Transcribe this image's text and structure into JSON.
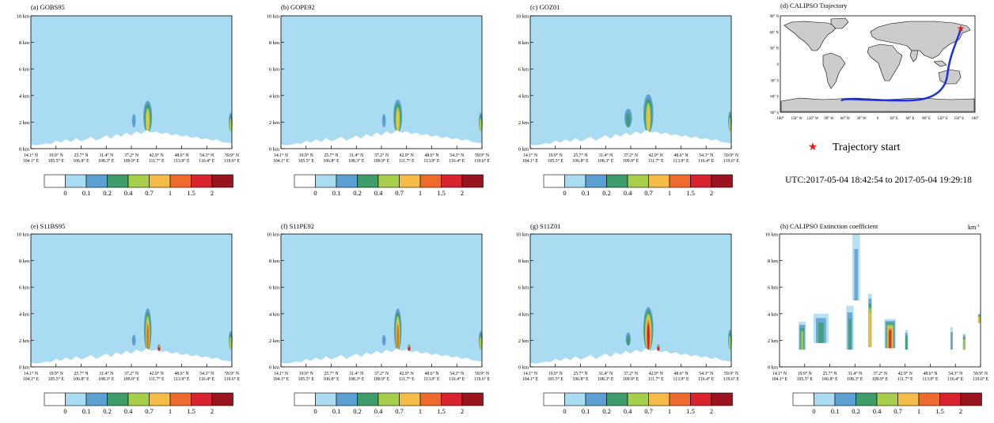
{
  "figure": {
    "colorbar": {
      "levels": [
        "0",
        "0.1",
        "0.2",
        "0.4",
        "0.7",
        "1",
        "1.5",
        "2"
      ],
      "colors": [
        "#ffffff",
        "#a9dcf2",
        "#5b9fd3",
        "#3e9d6b",
        "#a8cf4c",
        "#f5bd48",
        "#ef6a2d",
        "#d8232f",
        "#99141c"
      ]
    },
    "trajectory_panel": {
      "title": "(d) CALIPSO Trajectory",
      "lat_labels": [
        "90° N",
        "60° N",
        "30° N",
        "0",
        "30° S",
        "60° S",
        "90° S"
      ],
      "lon_labels": [
        "180°",
        "150° W",
        "120° W",
        "90° W",
        "60° W",
        "30° W",
        "0",
        "30° E",
        "60° E",
        "90° E",
        "120° E",
        "150° E",
        "180°"
      ],
      "legend_label": "Trajectory start",
      "utc_text": "UTC:2017-05-04 18:42:54 to 2017-05-04 19:29:18",
      "track_color": "#1a2fe0",
      "star_color": "#e41a1c"
    },
    "extinction_unit": "km",
    "extinction_unit_exp": "-1"
  },
  "chart_data": [
    {
      "type": "heatmap",
      "title": "(a) GOBS95",
      "xlabel": "",
      "ylabel": "",
      "ylim": [
        0,
        10
      ],
      "y_ticks": [
        "0 km",
        "2 km",
        "4 km",
        "6 km",
        "8 km",
        "10 km"
      ],
      "x_ticks": [
        [
          "14.1° N",
          "104.1° E"
        ],
        [
          "19.9° N",
          "105.5° E"
        ],
        [
          "25.7° N",
          "106.8° E"
        ],
        [
          "31.4° N",
          "108.3° E"
        ],
        [
          "37.2° N",
          "109.9° E"
        ],
        [
          "42.9° N",
          "111.7° E"
        ],
        [
          "48.6° N",
          "113.9° E"
        ],
        [
          "54.3° N",
          "116.4° E"
        ],
        [
          "59.9° N",
          "119.6° E"
        ]
      ],
      "cloud_features": [
        {
          "x_index": 4.65,
          "top_km": 3.6,
          "base_km": 1.2,
          "width": 0.35,
          "max_level": "0.7"
        },
        {
          "x_index": 4.1,
          "top_km": 2.6,
          "base_km": 1.6,
          "width": 0.15,
          "max_level": "0.1"
        },
        {
          "x_index": 7.95,
          "top_km": 2.7,
          "base_km": 1.3,
          "width": 0.15,
          "max_level": "0.4"
        }
      ]
    },
    {
      "type": "heatmap",
      "title": "(b) GOPE92",
      "xlabel": "",
      "ylabel": "",
      "ylim": [
        0,
        10
      ],
      "y_ticks": [
        "0 km",
        "2 km",
        "4 km",
        "6 km",
        "8 km",
        "10 km"
      ],
      "x_ticks": [
        [
          "14.1° N",
          "104.1° E"
        ],
        [
          "19.9° N",
          "105.5° E"
        ],
        [
          "25.7° N",
          "106.8° E"
        ],
        [
          "31.4° N",
          "108.3° E"
        ],
        [
          "37.2° N",
          "109.9° E"
        ],
        [
          "42.9° N",
          "111.7° E"
        ],
        [
          "48.6° N",
          "113.9° E"
        ],
        [
          "54.3° N",
          "116.4° E"
        ],
        [
          "59.9° N",
          "119.6° E"
        ]
      ],
      "cloud_features": [
        {
          "x_index": 4.65,
          "top_km": 3.7,
          "base_km": 1.2,
          "width": 0.35,
          "max_level": "0.7"
        },
        {
          "x_index": 4.1,
          "top_km": 2.6,
          "base_km": 1.6,
          "width": 0.15,
          "max_level": "0.1"
        },
        {
          "x_index": 7.95,
          "top_km": 2.7,
          "base_km": 1.3,
          "width": 0.15,
          "max_level": "0.4"
        }
      ]
    },
    {
      "type": "heatmap",
      "title": "(c) GOZ01",
      "xlabel": "",
      "ylabel": "",
      "ylim": [
        0,
        10
      ],
      "y_ticks": [
        "0 km",
        "2 km",
        "4 km",
        "6 km",
        "8 km",
        "10 km"
      ],
      "x_ticks": [
        [
          "14.1° N",
          "104.1° E"
        ],
        [
          "19.9° N",
          "105.5° E"
        ],
        [
          "25.7° N",
          "106.8° E"
        ],
        [
          "31.4° N",
          "108.3° E"
        ],
        [
          "37.2° N",
          "109.9° E"
        ],
        [
          "42.9° N",
          "111.7° E"
        ],
        [
          "48.6° N",
          "113.9° E"
        ],
        [
          "54.3° N",
          "116.4° E"
        ],
        [
          "59.9° N",
          "119.6° E"
        ]
      ],
      "cloud_features": [
        {
          "x_index": 4.7,
          "top_km": 4.1,
          "base_km": 1.2,
          "width": 0.4,
          "max_level": "0.7"
        },
        {
          "x_index": 3.9,
          "top_km": 3.0,
          "base_km": 1.6,
          "width": 0.3,
          "max_level": "0.2"
        },
        {
          "x_index": 7.95,
          "top_km": 2.8,
          "base_km": 1.3,
          "width": 0.15,
          "max_level": "0.4"
        }
      ]
    },
    {
      "type": "heatmap",
      "title": "(e) S11BS95",
      "xlabel": "",
      "ylabel": "",
      "ylim": [
        0,
        10
      ],
      "y_ticks": [
        "0 km",
        "2 km",
        "4 km",
        "6 km",
        "8 km",
        "10 km"
      ],
      "x_ticks": [
        [
          "14.1° N",
          "104.1° E"
        ],
        [
          "19.9° N",
          "105.5° E"
        ],
        [
          "25.7° N",
          "106.8° E"
        ],
        [
          "31.4° N",
          "108.3° E"
        ],
        [
          "37.2° N",
          "109.9° E"
        ],
        [
          "42.9° N",
          "111.7° E"
        ],
        [
          "48.6° N",
          "113.9° E"
        ],
        [
          "54.3° N",
          "116.4° E"
        ],
        [
          "59.9° N",
          "119.6° E"
        ]
      ],
      "cloud_features": [
        {
          "x_index": 4.65,
          "top_km": 4.4,
          "base_km": 1.2,
          "width": 0.3,
          "max_level": "1"
        },
        {
          "x_index": 5.1,
          "top_km": 1.7,
          "base_km": 1.2,
          "width": 0.12,
          "max_level": "1.5"
        },
        {
          "x_index": 4.1,
          "top_km": 2.4,
          "base_km": 1.6,
          "width": 0.15,
          "max_level": "0.1"
        },
        {
          "x_index": 7.95,
          "top_km": 2.7,
          "base_km": 1.3,
          "width": 0.15,
          "max_level": "0.4"
        }
      ]
    },
    {
      "type": "heatmap",
      "title": "(f) S11PE92",
      "xlabel": "",
      "ylabel": "",
      "ylim": [
        0,
        10
      ],
      "y_ticks": [
        "0 km",
        "2 km",
        "4 km",
        "6 km",
        "8 km",
        "10 km"
      ],
      "x_ticks": [
        [
          "14.1° N",
          "104.1° E"
        ],
        [
          "19.9° N",
          "105.5° E"
        ],
        [
          "25.7° N",
          "106.8° E"
        ],
        [
          "31.4° N",
          "108.3° E"
        ],
        [
          "37.2° N",
          "109.9° E"
        ],
        [
          "42.9° N",
          "111.7° E"
        ],
        [
          "48.6° N",
          "113.9° E"
        ],
        [
          "54.3° N",
          "116.4° E"
        ],
        [
          "59.9° N",
          "119.6° E"
        ]
      ],
      "cloud_features": [
        {
          "x_index": 4.65,
          "top_km": 4.4,
          "base_km": 1.2,
          "width": 0.3,
          "max_level": "1"
        },
        {
          "x_index": 5.1,
          "top_km": 1.7,
          "base_km": 1.2,
          "width": 0.12,
          "max_level": "1.5"
        },
        {
          "x_index": 4.1,
          "top_km": 2.4,
          "base_km": 1.6,
          "width": 0.15,
          "max_level": "0.1"
        },
        {
          "x_index": 7.95,
          "top_km": 2.7,
          "base_km": 1.3,
          "width": 0.15,
          "max_level": "0.4"
        }
      ]
    },
    {
      "type": "heatmap",
      "title": "(g) S11Z01",
      "xlabel": "",
      "ylabel": "",
      "ylim": [
        0,
        10
      ],
      "y_ticks": [
        "0 km",
        "2 km",
        "4 km",
        "6 km",
        "8 km",
        "10 km"
      ],
      "x_ticks": [
        [
          "14.1° N",
          "104.1° E"
        ],
        [
          "19.9° N",
          "105.5° E"
        ],
        [
          "25.7° N",
          "106.8° E"
        ],
        [
          "31.4° N",
          "108.3° E"
        ],
        [
          "37.2° N",
          "109.9° E"
        ],
        [
          "42.9° N",
          "111.7° E"
        ],
        [
          "48.6° N",
          "113.9° E"
        ],
        [
          "54.3° N",
          "116.4° E"
        ],
        [
          "59.9° N",
          "119.6° E"
        ]
      ],
      "cloud_features": [
        {
          "x_index": 4.7,
          "top_km": 4.5,
          "base_km": 1.2,
          "width": 0.4,
          "max_level": "1.5"
        },
        {
          "x_index": 5.1,
          "top_km": 1.7,
          "base_km": 1.2,
          "width": 0.12,
          "max_level": "1.5"
        },
        {
          "x_index": 3.9,
          "top_km": 2.6,
          "base_km": 1.6,
          "width": 0.2,
          "max_level": "0.2"
        },
        {
          "x_index": 7.95,
          "top_km": 2.8,
          "base_km": 1.3,
          "width": 0.15,
          "max_level": "0.4"
        }
      ]
    },
    {
      "type": "heatmap",
      "title": "(h) CALIPSO Extinction coefficient",
      "xlabel": "",
      "ylabel": "",
      "ylim": [
        0,
        10
      ],
      "y_ticks": [
        "0 km",
        "2 km",
        "4 km",
        "6 km",
        "8 km",
        "10 km"
      ],
      "x_ticks": [
        [
          "14.1° N",
          "104.1° E"
        ],
        [
          "19.9° N",
          "105.5° E"
        ],
        [
          "25.7° N",
          "106.8° E"
        ],
        [
          "31.4° N",
          "108.3° E"
        ],
        [
          "37.2° N",
          "109.9° E"
        ],
        [
          "42.9° N",
          "111.7° E"
        ],
        [
          "48.6° N",
          "113.9° E"
        ],
        [
          "54.3° N",
          "116.4° E"
        ],
        [
          "59.9° N",
          "119.6° E"
        ]
      ],
      "cloud_features": [
        {
          "x_index": 0.9,
          "top_km": 3.4,
          "base_km": 1.3,
          "width": 0.3,
          "max_level": "0.4"
        },
        {
          "x_index": 1.65,
          "top_km": 4.0,
          "base_km": 1.8,
          "width": 0.6,
          "max_level": "0.2"
        },
        {
          "x_index": 2.8,
          "top_km": 4.6,
          "base_km": 1.3,
          "width": 0.3,
          "max_level": "0.2"
        },
        {
          "x_index": 3.05,
          "top_km": 10.0,
          "base_km": 5.0,
          "width": 0.3,
          "max_level": "0.1"
        },
        {
          "x_index": 3.6,
          "top_km": 5.5,
          "base_km": 1.5,
          "width": 0.15,
          "max_level": "0.7"
        },
        {
          "x_index": 4.4,
          "top_km": 3.6,
          "base_km": 1.4,
          "width": 0.45,
          "max_level": "1.5"
        },
        {
          "x_index": 5.05,
          "top_km": 2.8,
          "base_km": 1.3,
          "width": 0.1,
          "max_level": "0.2"
        },
        {
          "x_index": 6.85,
          "top_km": 3.0,
          "base_km": 1.3,
          "width": 0.1,
          "max_level": "0.1"
        },
        {
          "x_index": 7.35,
          "top_km": 2.5,
          "base_km": 1.3,
          "width": 0.1,
          "max_level": "0.4"
        },
        {
          "x_index": 7.95,
          "top_km": 4.0,
          "base_km": 3.3,
          "width": 0.05,
          "max_level": "0.7"
        }
      ]
    }
  ]
}
